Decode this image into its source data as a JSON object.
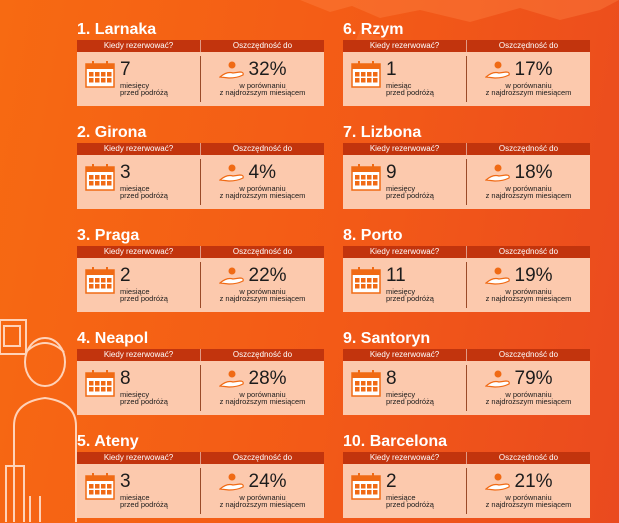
{
  "header_when": "Kiedy rezerwować?",
  "header_saving": "Oszczędność do",
  "compare_line1": "w porównaniu",
  "compare_line2": "z najdroższym miesiącem",
  "colors": {
    "bg": "#f76a12",
    "header": "#c2340d",
    "panel": "#fcc9ad",
    "icon": "#f06a14"
  },
  "cities": [
    {
      "title": "1. Larnaka",
      "months": "7",
      "unit1": "miesięcy",
      "unit2": "przed podróżą",
      "saving": "32%"
    },
    {
      "title": "2. Girona",
      "months": "3",
      "unit1": "miesiące",
      "unit2": "przed podróżą",
      "saving": "4%"
    },
    {
      "title": "3. Praga",
      "months": "2",
      "unit1": "miesiące",
      "unit2": "przed podróżą",
      "saving": "22%"
    },
    {
      "title": "4. Neapol",
      "months": "8",
      "unit1": "miesięcy",
      "unit2": "przed podróżą",
      "saving": "28%"
    },
    {
      "title": "5. Ateny",
      "months": "3",
      "unit1": "miesiące",
      "unit2": "przed podróżą",
      "saving": "24%"
    },
    {
      "title": "6. Rzym",
      "months": "1",
      "unit1": "miesiąc",
      "unit2": "przed podróżą",
      "saving": "17%"
    },
    {
      "title": "7. Lizbona",
      "months": "9",
      "unit1": "miesięcy",
      "unit2": "przed podróżą",
      "saving": "18%"
    },
    {
      "title": "8. Porto",
      "months": "11",
      "unit1": "miesięcy",
      "unit2": "przed podróżą",
      "saving": "19%"
    },
    {
      "title": "9. Santoryn",
      "months": "8",
      "unit1": "miesięcy",
      "unit2": "przed podróżą",
      "saving": "79%"
    },
    {
      "title": "10. Barcelona",
      "months": "2",
      "unit1": "miesiące",
      "unit2": "przed podróżą",
      "saving": "21%"
    }
  ]
}
